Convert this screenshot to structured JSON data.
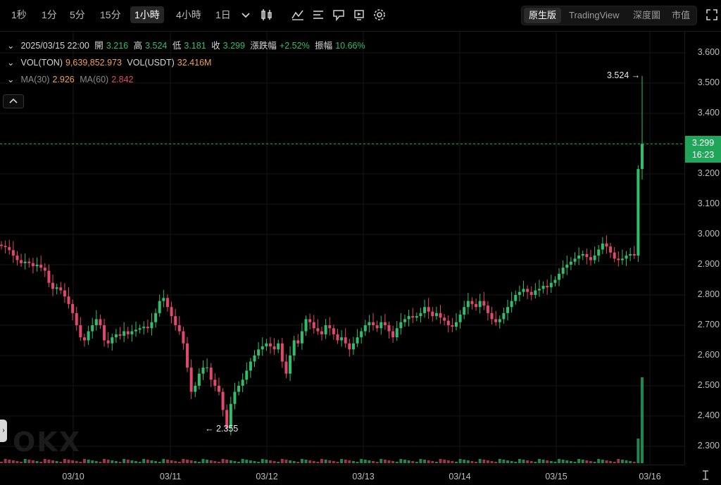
{
  "toolbar": {
    "timeframes": [
      "1秒",
      "1分",
      "5分",
      "15分",
      "1小時",
      "4小時",
      "1日"
    ],
    "active_timeframe": "1小時",
    "icons": [
      "chevron-down-icon",
      "candle-type-icon",
      "indicators-icon",
      "settings-list-icon",
      "drawing-icon",
      "replay-icon",
      "gear-icon"
    ],
    "modes": [
      "原生版",
      "TradingView",
      "深度圖",
      "市值"
    ],
    "active_mode": "原生版",
    "fullscreen_icon": "expand-icon"
  },
  "legend": {
    "date": "2025/03/15 22:00",
    "open_label": "開",
    "open": "3.216",
    "high_label": "高",
    "high": "3.524",
    "low_label": "低",
    "low": "3.181",
    "close_label": "收",
    "close": "3.299",
    "change_label": "漲跌幅",
    "change": "+2.52%",
    "amp_label": "振幅",
    "amp": "10.66%",
    "vol_base_label": "VOL(TON)",
    "vol_base": "9,639,852.973",
    "vol_quote_label": "VOL(USDT)",
    "vol_quote": "32.416M",
    "ma30_label": "MA(30)",
    "ma30": "2.926",
    "ma60_label": "MA(60)",
    "ma60": "2.842"
  },
  "price_axis": [
    "3.600",
    "3.500",
    "3.400",
    "3.200",
    "3.100",
    "3.000",
    "2.900",
    "2.800",
    "2.700",
    "2.600",
    "2.500",
    "2.400",
    "2.300"
  ],
  "current_price": {
    "price": "3.299",
    "countdown": "16:23"
  },
  "time_axis": [
    "03/10",
    "03/11",
    "03/12",
    "03/13",
    "03/14",
    "03/15",
    "03/16"
  ],
  "annotations": {
    "high": "3.524 →",
    "low": "← 2.355"
  },
  "watermark": "OKX",
  "colors": {
    "up": "#2fbf6b",
    "down": "#e0486d",
    "grid": "#161616",
    "last_price": "#1fa659"
  },
  "chart_data": {
    "type": "candlestick",
    "ylim": [
      2.28,
      3.64
    ],
    "close_series_hourly": [
      2.962,
      2.958,
      2.948,
      2.93,
      2.915,
      2.905,
      2.91,
      2.905,
      2.895,
      2.9,
      2.89,
      2.88,
      2.84,
      2.82,
      2.825,
      2.815,
      2.795,
      2.77,
      2.74,
      2.7,
      2.66,
      2.65,
      2.68,
      2.7,
      2.72,
      2.7,
      2.65,
      2.64,
      2.66,
      2.67,
      2.665,
      2.68,
      2.67,
      2.68,
      2.685,
      2.69,
      2.695,
      2.69,
      2.71,
      2.74,
      2.78,
      2.79,
      2.76,
      2.73,
      2.7,
      2.68,
      2.64,
      2.56,
      2.48,
      2.5,
      2.54,
      2.56,
      2.56,
      2.52,
      2.5,
      2.48,
      2.42,
      2.36,
      2.44,
      2.48,
      2.5,
      2.52,
      2.55,
      2.58,
      2.6,
      2.62,
      2.63,
      2.64,
      2.63,
      2.62,
      2.64,
      2.58,
      2.54,
      2.6,
      2.65,
      2.64,
      2.68,
      2.72,
      2.71,
      2.69,
      2.68,
      2.67,
      2.7,
      2.69,
      2.67,
      2.65,
      2.66,
      2.64,
      2.62,
      2.64,
      2.66,
      2.68,
      2.7,
      2.71,
      2.7,
      2.69,
      2.71,
      2.7,
      2.68,
      2.66,
      2.69,
      2.71,
      2.72,
      2.73,
      2.725,
      2.73,
      2.74,
      2.76,
      2.745,
      2.73,
      2.74,
      2.725,
      2.715,
      2.7,
      2.695,
      2.71,
      2.735,
      2.76,
      2.78,
      2.77,
      2.76,
      2.78,
      2.765,
      2.74,
      2.72,
      2.71,
      2.72,
      2.74,
      2.76,
      2.78,
      2.8,
      2.81,
      2.82,
      2.81,
      2.8,
      2.815,
      2.82,
      2.83,
      2.825,
      2.84,
      2.85,
      2.87,
      2.89,
      2.9,
      2.91,
      2.92,
      2.93,
      2.935,
      2.925,
      2.915,
      2.93,
      2.95,
      2.97,
      2.96,
      2.94,
      2.92,
      2.915,
      2.92,
      2.93,
      2.935,
      2.93,
      3.216,
      3.299
    ],
    "high": 3.524,
    "low": 2.355
  }
}
